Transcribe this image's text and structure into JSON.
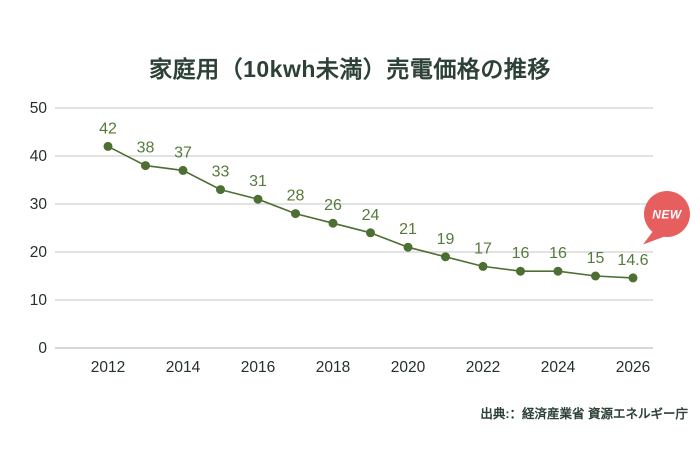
{
  "title": "家庭用（10kwh未満）売電価格の推移",
  "source": "出典:：経済産業省 資源エネルギー庁",
  "badge": {
    "label": "NEW"
  },
  "colors": {
    "background": "#ffffff",
    "title_text": "#2d4137",
    "axis_text": "#243029",
    "gridline": "#d9d9d9",
    "baseline": "#c9c9c9",
    "line": "#4d6f32",
    "marker": "#4d6f32",
    "value_label": "#567a3b",
    "badge_bg": "#e65e5e",
    "badge_text": "#ffffff",
    "source_text": "#2d4137"
  },
  "chart_data": {
    "type": "line",
    "title": "家庭用（10kwh未満）売電価格の推移",
    "x": [
      2012,
      2013,
      2014,
      2015,
      2016,
      2017,
      2018,
      2019,
      2020,
      2021,
      2022,
      2023,
      2024,
      2025,
      2026
    ],
    "values": [
      42,
      38,
      37,
      33,
      31,
      28,
      26,
      24,
      21,
      19,
      17,
      16,
      16,
      15,
      14.6
    ],
    "xlabel": "",
    "ylabel": "",
    "ylim": [
      0,
      50
    ],
    "yticks": [
      0,
      10,
      20,
      30,
      40,
      50
    ],
    "xticks": [
      2012,
      2014,
      2016,
      2018,
      2020,
      2022,
      2024,
      2026
    ],
    "grid": true,
    "legend": "none",
    "point_labels_visible": true,
    "annotation": "NEW"
  }
}
